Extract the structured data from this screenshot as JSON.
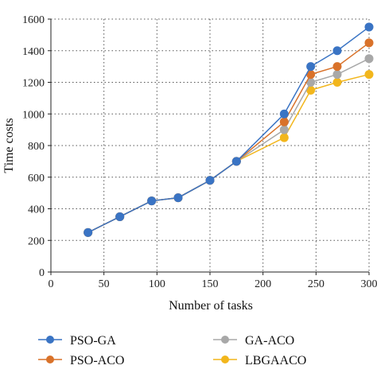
{
  "chart_data": {
    "type": "line",
    "title": "",
    "xlabel": "Number of tasks",
    "ylabel": "Time costs",
    "xlim": [
      0,
      300
    ],
    "ylim": [
      0,
      1600
    ],
    "xticks": [
      0,
      50,
      100,
      150,
      200,
      250,
      300
    ],
    "yticks": [
      0,
      200,
      400,
      600,
      800,
      1000,
      1200,
      1400,
      1600
    ],
    "grid": true,
    "grid_style": "dotted",
    "legend_position": "bottom",
    "x": [
      35,
      65,
      95,
      120,
      150,
      175,
      220,
      245,
      270,
      300
    ],
    "series": [
      {
        "name": "PSO-GA",
        "color": "#3a74c4",
        "values": [
          250,
          350,
          450,
          470,
          580,
          700,
          1000,
          1300,
          1400,
          1550
        ]
      },
      {
        "name": "PSO-ACO",
        "color": "#d9722a",
        "values": [
          250,
          350,
          450,
          470,
          580,
          700,
          950,
          1250,
          1300,
          1450
        ]
      },
      {
        "name": "GA-ACO",
        "color": "#a8a8a8",
        "values": [
          250,
          350,
          450,
          470,
          580,
          700,
          900,
          1200,
          1250,
          1350
        ]
      },
      {
        "name": "LBGAACO",
        "color": "#f2b61c",
        "values": [
          250,
          350,
          450,
          470,
          580,
          700,
          850,
          1150,
          1200,
          1250
        ]
      }
    ]
  }
}
